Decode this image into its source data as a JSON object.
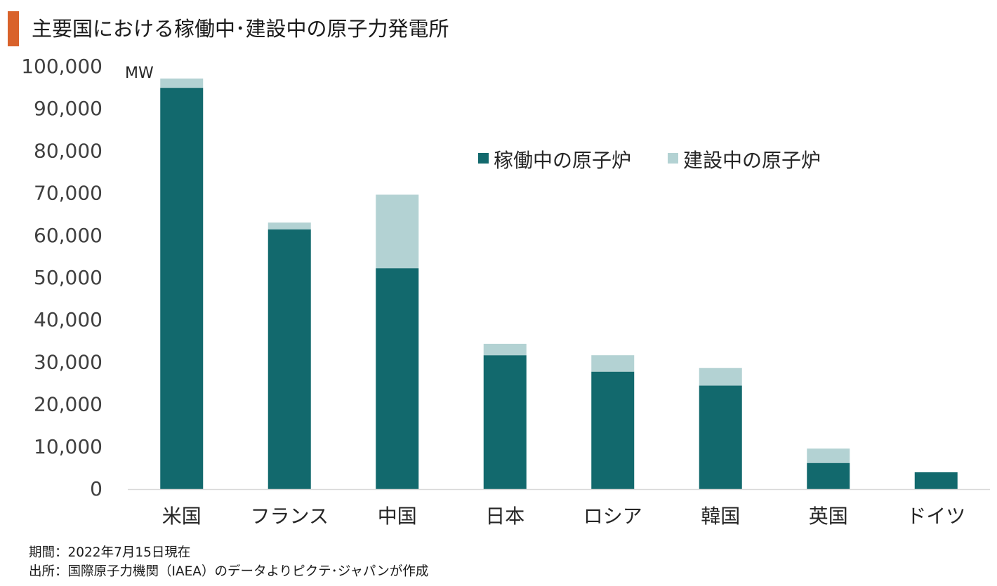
{
  "title": "主要国における稼働中･建設中の原子力発電所",
  "accent_color": "#d9622b",
  "chart_data": {
    "type": "bar",
    "stacked": true,
    "categories": [
      "米国",
      "フランス",
      "中国",
      "日本",
      "ロシア",
      "韓国",
      "英国",
      "ドイツ"
    ],
    "series": [
      {
        "name": "稼働中の原子炉",
        "color": "#12696d",
        "values": [
          95000,
          61500,
          52300,
          31700,
          27800,
          24500,
          6200,
          4000
        ]
      },
      {
        "name": "建設中の原子炉",
        "color": "#b3d2d3",
        "values": [
          2200,
          1600,
          17400,
          2700,
          3900,
          4200,
          3400,
          0
        ]
      }
    ],
    "ylim": [
      0,
      100000
    ],
    "ytick_values": [
      0,
      10000,
      20000,
      30000,
      40000,
      50000,
      60000,
      70000,
      80000,
      90000,
      100000
    ],
    "ytick_labels": [
      "0",
      "10,000",
      "20,000",
      "30,000",
      "40,000",
      "50,000",
      "60,000",
      "70,000",
      "80,000",
      "90,000",
      "100,000"
    ],
    "unit": "MW",
    "legend_position": "top-right",
    "grid": false
  },
  "footnotes": {
    "period": "期間：2022年7月15日現在",
    "source": "出所：国際原子力機関（IAEA）のデータよりピクテ･ジャパンが作成"
  }
}
